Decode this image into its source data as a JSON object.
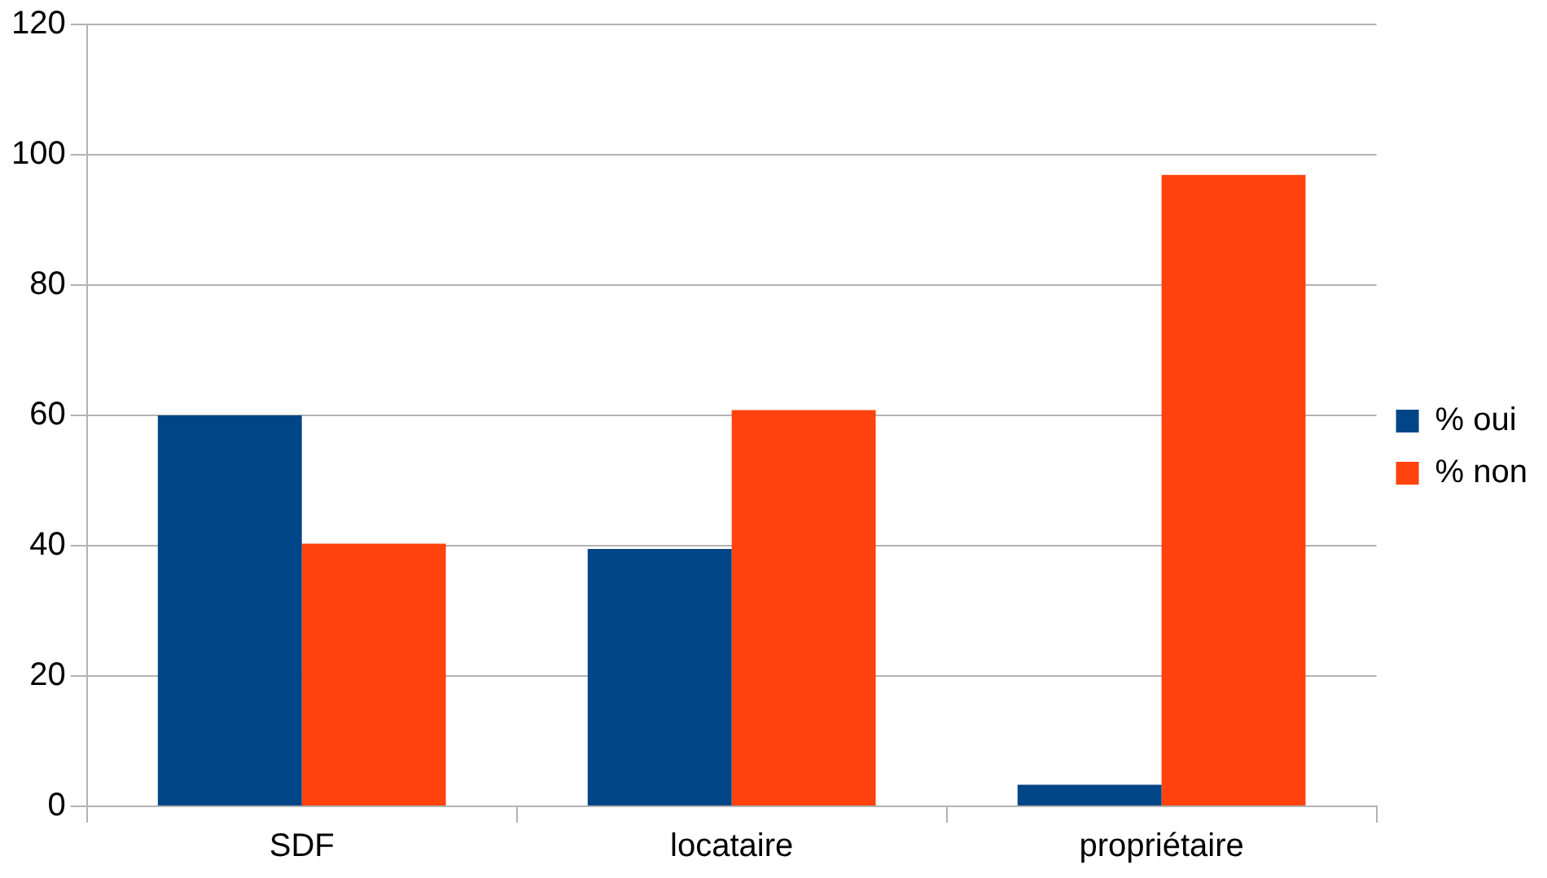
{
  "chart_data": {
    "type": "bar",
    "categories": [
      "SDF",
      "locataire",
      "propriétaire"
    ],
    "series": [
      {
        "name": "% oui",
        "color": "#004586",
        "values": [
          60,
          39.5,
          3.3
        ]
      },
      {
        "name": "% non",
        "color": "#ff420e",
        "values": [
          40.3,
          60.8,
          96.9
        ]
      }
    ],
    "ylim": [
      0,
      120
    ],
    "yticks": [
      0,
      20,
      40,
      60,
      80,
      100,
      120
    ],
    "grid": "y",
    "legend": "right"
  }
}
